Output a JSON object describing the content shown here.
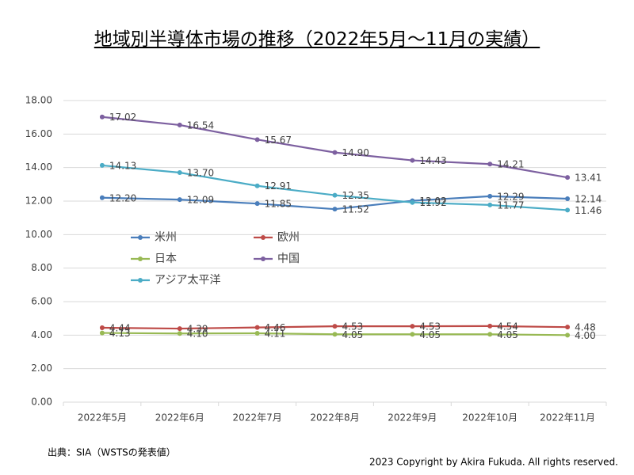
{
  "chart_data": {
    "type": "line",
    "title": "地域別半導体市場の推移（2022年5月～11月の実績）",
    "categories": [
      "2022年5月",
      "2022年6月",
      "2022年7月",
      "2022年8月",
      "2022年9月",
      "2022年10月",
      "2022年11月"
    ],
    "series": [
      {
        "name": "米州",
        "color": "#4a7ebb",
        "values": [
          12.2,
          12.09,
          11.85,
          11.52,
          12.02,
          12.29,
          12.14
        ],
        "value_labels": [
          "12.20",
          "12.09",
          "11.85",
          "11.52",
          "12.02",
          "12.29",
          "12.14"
        ]
      },
      {
        "name": "欧州",
        "color": "#be4b48",
        "values": [
          4.44,
          4.39,
          4.46,
          4.53,
          4.53,
          4.54,
          4.48
        ],
        "value_labels": [
          "4.44",
          "4.39",
          "4.46",
          "4.53",
          "4.53",
          "4.54",
          "4.48"
        ]
      },
      {
        "name": "日本",
        "color": "#98b954",
        "values": [
          4.13,
          4.1,
          4.11,
          4.05,
          4.05,
          4.05,
          4.0
        ],
        "value_labels": [
          "4.13",
          "4.10",
          "4.11",
          "4.05",
          "4.05",
          "4.05",
          "4.00"
        ]
      },
      {
        "name": "中国",
        "color": "#7d60a0",
        "values": [
          17.02,
          16.54,
          15.67,
          14.9,
          14.43,
          14.21,
          13.41
        ],
        "value_labels": [
          "17.02",
          "16.54",
          "15.67",
          "14.90",
          "14.43",
          "14.21",
          "13.41"
        ]
      },
      {
        "name": "アジア太平洋",
        "color": "#4bacc6",
        "values": [
          14.13,
          13.7,
          12.91,
          12.35,
          11.92,
          11.77,
          11.46
        ],
        "value_labels": [
          "14.13",
          "13.70",
          "12.91",
          "12.35",
          "11.92",
          "11.77",
          "11.46"
        ]
      }
    ],
    "ylim": [
      0,
      18
    ],
    "yticks": [
      {
        "value": 0,
        "label": "0.00"
      },
      {
        "value": 2,
        "label": "2.00"
      },
      {
        "value": 4,
        "label": "4.00"
      },
      {
        "value": 6,
        "label": "6.00"
      },
      {
        "value": 8,
        "label": "8.00"
      },
      {
        "value": 10,
        "label": "10.00"
      },
      {
        "value": 12,
        "label": "12.00"
      },
      {
        "value": 14,
        "label": "14.00"
      },
      {
        "value": 16,
        "label": "16.00"
      },
      {
        "value": 18,
        "label": "18.00"
      }
    ],
    "grid": true,
    "source": "出典：SIA（WSTSの発表値）",
    "copyright": "2023 Copyright by Akira Fukuda. All rights reserved."
  }
}
